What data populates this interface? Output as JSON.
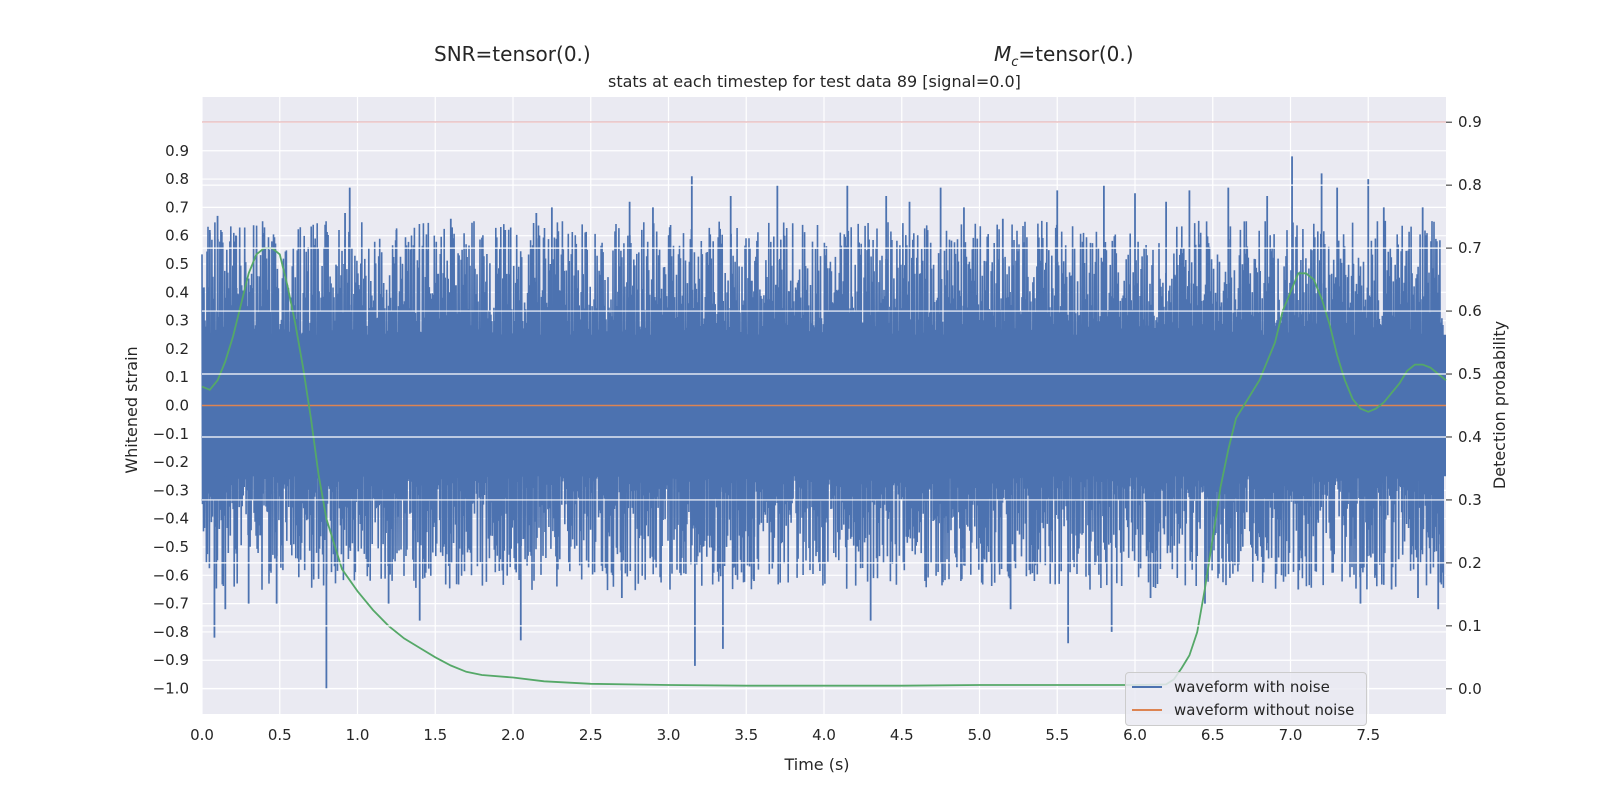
{
  "header": {
    "snr_label": "SNR=tensor(0.)",
    "mc_symbol": "M",
    "mc_subscript": "c",
    "mc_value": "=tensor(0.)"
  },
  "chart_data": {
    "type": "line",
    "title": "stats at each timestep for test data 89 [signal=0.0]",
    "xlabel": "Time (s)",
    "ylabel": "Whitened strain",
    "y2label": "Detection probability",
    "xlim": [
      0.0,
      8.0
    ],
    "ylim": [
      -1.09,
      1.09
    ],
    "y2lim": [
      -0.04,
      0.94
    ],
    "xticks": [
      "0.0",
      "0.5",
      "1.0",
      "1.5",
      "2.0",
      "2.5",
      "3.0",
      "3.5",
      "4.0",
      "4.5",
      "5.0",
      "5.5",
      "6.0",
      "6.5",
      "7.0",
      "7.5"
    ],
    "yticks": [
      "0.9",
      "0.8",
      "0.7",
      "0.6",
      "0.5",
      "0.4",
      "0.3",
      "0.2",
      "0.1",
      "0.0",
      "−0.1",
      "−0.2",
      "−0.3",
      "−0.4",
      "−0.5",
      "−0.6",
      "−0.7",
      "−0.8",
      "−0.9",
      "−1.0"
    ],
    "y2ticks": [
      "0.9",
      "0.8",
      "0.7",
      "0.6",
      "0.5",
      "0.4",
      "0.3",
      "0.2",
      "0.1",
      "0.0"
    ],
    "grid": true,
    "legend_position": "lower-right",
    "colors": {
      "noisy": "#4c72b0",
      "clean": "#dd8452",
      "prob": "#55a868",
      "threshold": "#c44e52",
      "axes_bg": "#eaeaf2",
      "grid": "#ffffff"
    },
    "series": [
      {
        "name": "waveform with noise",
        "axis": "left",
        "style": "noise",
        "envelope_hi": 0.45,
        "envelope_lo": -0.45,
        "spikes": [
          [
            0.05,
            0.62
          ],
          [
            0.1,
            0.67
          ],
          [
            0.18,
            0.58
          ],
          [
            0.22,
            0.6
          ],
          [
            0.35,
            0.56
          ],
          [
            0.45,
            0.58
          ],
          [
            0.95,
            0.77
          ],
          [
            0.92,
            0.68
          ],
          [
            1.25,
            0.62
          ],
          [
            1.6,
            0.66
          ],
          [
            1.95,
            0.62
          ],
          [
            2.15,
            0.68
          ],
          [
            2.25,
            0.7
          ],
          [
            2.75,
            0.72
          ],
          [
            2.9,
            0.7
          ],
          [
            3.15,
            0.81
          ],
          [
            3.4,
            0.74
          ],
          [
            3.7,
            0.78
          ],
          [
            4.15,
            0.78
          ],
          [
            4.4,
            0.74
          ],
          [
            4.55,
            0.72
          ],
          [
            4.75,
            0.77
          ],
          [
            4.9,
            0.7
          ],
          [
            5.15,
            0.66
          ],
          [
            5.5,
            0.76
          ],
          [
            5.8,
            0.78
          ],
          [
            6.0,
            0.75
          ],
          [
            6.2,
            0.72
          ],
          [
            6.35,
            0.76
          ],
          [
            6.6,
            0.77
          ],
          [
            6.85,
            0.74
          ],
          [
            7.01,
            0.88
          ],
          [
            7.2,
            0.82
          ],
          [
            7.3,
            0.77
          ],
          [
            7.5,
            0.8
          ],
          [
            7.6,
            0.7
          ],
          [
            7.85,
            0.7
          ],
          [
            0.08,
            -0.82
          ],
          [
            0.15,
            -0.72
          ],
          [
            0.3,
            -0.7
          ],
          [
            0.48,
            -0.7
          ],
          [
            0.8,
            -1.0
          ],
          [
            1.2,
            -0.7
          ],
          [
            1.4,
            -0.76
          ],
          [
            2.05,
            -0.83
          ],
          [
            2.7,
            -0.68
          ],
          [
            3.17,
            -0.92
          ],
          [
            3.35,
            -0.86
          ],
          [
            3.55,
            -0.62
          ],
          [
            4.3,
            -0.76
          ],
          [
            4.65,
            -0.62
          ],
          [
            5.2,
            -0.72
          ],
          [
            5.57,
            -0.84
          ],
          [
            5.85,
            -0.8
          ],
          [
            6.1,
            -0.68
          ],
          [
            6.45,
            -0.7
          ],
          [
            7.05,
            -0.65
          ],
          [
            7.45,
            -0.7
          ],
          [
            7.65,
            -0.65
          ],
          [
            7.82,
            -0.68
          ],
          [
            7.95,
            -0.72
          ]
        ]
      },
      {
        "name": "waveform without noise",
        "axis": "left",
        "x": [
          0.0,
          8.0
        ],
        "y": [
          0.0,
          0.0
        ]
      },
      {
        "axis": "right",
        "x": [
          0.0,
          0.05,
          0.1,
          0.15,
          0.2,
          0.25,
          0.3,
          0.35,
          0.4,
          0.45,
          0.5,
          0.55,
          0.6,
          0.65,
          0.7,
          0.75,
          0.8,
          0.9,
          1.0,
          1.1,
          1.2,
          1.3,
          1.4,
          1.5,
          1.6,
          1.7,
          1.8,
          2.0,
          2.2,
          2.5,
          3.0,
          3.5,
          4.0,
          4.5,
          5.0,
          5.5,
          6.0,
          6.2,
          6.25,
          6.3,
          6.35,
          6.4,
          6.45,
          6.5,
          6.55,
          6.6,
          6.65,
          6.7,
          6.8,
          6.9,
          6.95,
          7.0,
          7.05,
          7.1,
          7.15,
          7.2,
          7.25,
          7.3,
          7.35,
          7.4,
          7.45,
          7.5,
          7.55,
          7.6,
          7.65,
          7.7,
          7.75,
          7.8,
          7.85,
          7.9,
          7.95,
          8.0
        ],
        "y": [
          0.48,
          0.475,
          0.49,
          0.52,
          0.56,
          0.61,
          0.66,
          0.69,
          0.7,
          0.7,
          0.69,
          0.64,
          0.58,
          0.51,
          0.43,
          0.34,
          0.27,
          0.19,
          0.155,
          0.125,
          0.1,
          0.08,
          0.065,
          0.05,
          0.037,
          0.027,
          0.022,
          0.018,
          0.012,
          0.008,
          0.006,
          0.005,
          0.005,
          0.005,
          0.006,
          0.006,
          0.006,
          0.007,
          0.015,
          0.033,
          0.053,
          0.09,
          0.16,
          0.24,
          0.32,
          0.38,
          0.43,
          0.45,
          0.49,
          0.55,
          0.6,
          0.63,
          0.66,
          0.66,
          0.65,
          0.62,
          0.58,
          0.53,
          0.49,
          0.46,
          0.445,
          0.44,
          0.445,
          0.455,
          0.47,
          0.485,
          0.505,
          0.515,
          0.515,
          0.51,
          0.5,
          0.49
        ]
      },
      {
        "axis": "right",
        "style": "threshold",
        "x": [
          0.0,
          8.0
        ],
        "y": [
          0.9,
          0.9
        ]
      }
    ]
  }
}
